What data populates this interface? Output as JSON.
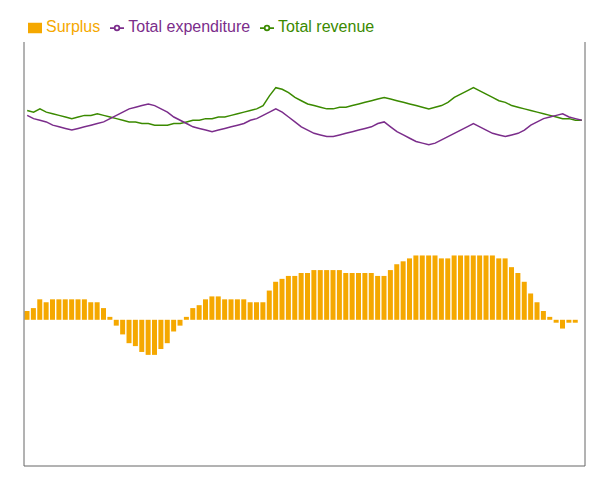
{
  "chart_data": {
    "type": "bar",
    "tick_labels": false,
    "grid": false,
    "legend": "upper left",
    "ylim": [
      -6.0,
      20.0
    ],
    "y2lim": [
      -5.0,
      9.5
    ],
    "series": [
      {
        "name": "Surplus",
        "type": "bar",
        "axis": "y2",
        "color": "#F5A800",
        "values": [
          0.3,
          0.4,
          0.7,
          0.6,
          0.7,
          0.7,
          0.7,
          0.7,
          0.7,
          0.7,
          0.6,
          0.6,
          0.4,
          0.1,
          -0.2,
          -0.5,
          -0.8,
          -0.9,
          -1.1,
          -1.2,
          -1.2,
          -1.0,
          -0.8,
          -0.4,
          -0.2,
          0.1,
          0.4,
          0.5,
          0.7,
          0.8,
          0.8,
          0.7,
          0.7,
          0.7,
          0.7,
          0.6,
          0.6,
          0.6,
          1.0,
          1.3,
          1.4,
          1.5,
          1.5,
          1.6,
          1.6,
          1.7,
          1.7,
          1.7,
          1.7,
          1.7,
          1.6,
          1.6,
          1.6,
          1.6,
          1.6,
          1.5,
          1.5,
          1.7,
          1.9,
          2.0,
          2.1,
          2.2,
          2.2,
          2.2,
          2.2,
          2.1,
          2.1,
          2.2,
          2.2,
          2.2,
          2.2,
          2.2,
          2.2,
          2.2,
          2.1,
          2.1,
          1.8,
          1.6,
          1.3,
          0.9,
          0.6,
          0.3,
          0.1,
          -0.1,
          -0.3,
          -0.1,
          -0.1,
          0.0
        ]
      },
      {
        "name": "Total revenue",
        "type": "line",
        "color": "#3B8A00",
        "values": [
          15.8,
          15.7,
          15.9,
          15.7,
          15.6,
          15.5,
          15.4,
          15.3,
          15.4,
          15.5,
          15.5,
          15.6,
          15.5,
          15.4,
          15.3,
          15.2,
          15.1,
          15.1,
          15.0,
          15.0,
          14.9,
          14.9,
          14.9,
          15.0,
          15.0,
          15.1,
          15.2,
          15.2,
          15.3,
          15.3,
          15.4,
          15.4,
          15.5,
          15.6,
          15.7,
          15.8,
          15.9,
          16.1,
          16.7,
          17.2,
          17.1,
          16.9,
          16.6,
          16.4,
          16.2,
          16.1,
          16.0,
          15.9,
          15.9,
          16.0,
          16.0,
          16.1,
          16.2,
          16.3,
          16.4,
          16.5,
          16.6,
          16.5,
          16.4,
          16.3,
          16.2,
          16.1,
          16.0,
          15.9,
          16.0,
          16.1,
          16.3,
          16.6,
          16.8,
          17.0,
          17.2,
          17.0,
          16.8,
          16.6,
          16.4,
          16.3,
          16.1,
          16.0,
          15.9,
          15.8,
          15.7,
          15.6,
          15.5,
          15.4,
          15.3,
          15.3,
          15.2,
          15.2
        ]
      },
      {
        "name": "Total expenditure",
        "type": "line",
        "color": "#7B2D8B",
        "values": [
          15.5,
          15.3,
          15.2,
          15.1,
          14.9,
          14.8,
          14.7,
          14.6,
          14.7,
          14.8,
          14.9,
          15.0,
          15.1,
          15.3,
          15.5,
          15.7,
          15.9,
          16.0,
          16.1,
          16.2,
          16.1,
          15.9,
          15.7,
          15.4,
          15.2,
          15.0,
          14.8,
          14.7,
          14.6,
          14.5,
          14.6,
          14.7,
          14.8,
          14.9,
          15.0,
          15.2,
          15.3,
          15.5,
          15.7,
          15.9,
          15.7,
          15.4,
          15.1,
          14.8,
          14.6,
          14.4,
          14.3,
          14.2,
          14.2,
          14.3,
          14.4,
          14.5,
          14.6,
          14.7,
          14.8,
          15.0,
          15.1,
          14.8,
          14.5,
          14.3,
          14.1,
          13.9,
          13.8,
          13.7,
          13.8,
          14.0,
          14.2,
          14.4,
          14.6,
          14.8,
          15.0,
          14.8,
          14.6,
          14.4,
          14.3,
          14.2,
          14.3,
          14.4,
          14.6,
          14.9,
          15.1,
          15.3,
          15.4,
          15.5,
          15.6,
          15.4,
          15.3,
          15.2
        ]
      }
    ]
  }
}
